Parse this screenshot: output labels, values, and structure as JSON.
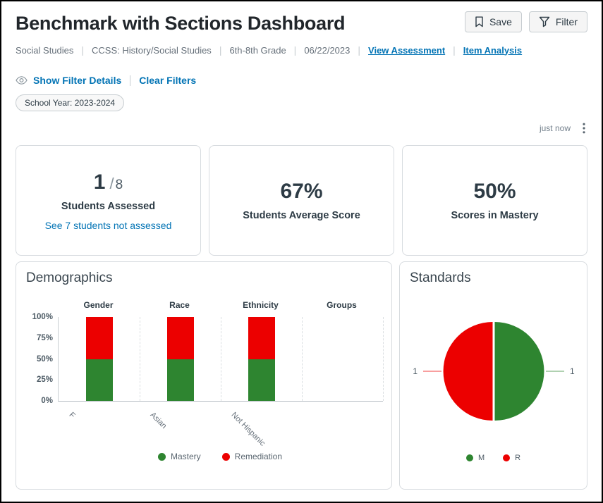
{
  "page": {
    "title": "Benchmark with Sections Dashboard",
    "toolbar": {
      "save_label": "Save",
      "filter_label": "Filter"
    },
    "breadcrumb": {
      "items": [
        "Social Studies",
        "CCSS: History/Social Studies",
        "6th-8th Grade",
        "06/22/2023"
      ],
      "links": [
        "View Assessment",
        "Item Analysis"
      ]
    },
    "filter_bar": {
      "show_filter_details": "Show Filter Details",
      "clear_filters": "Clear Filters"
    },
    "chips": [
      {
        "label": "School Year: 2023-2024"
      }
    ],
    "meta": {
      "updated": "just now"
    }
  },
  "stats": [
    {
      "value": "1",
      "separator": "/",
      "total": "8",
      "label": "Students Assessed",
      "link": "See 7 students not assessed"
    },
    {
      "value": "67%",
      "label": "Students Average Score"
    },
    {
      "value": "50%",
      "label": "Scores in Mastery"
    }
  ],
  "colors": {
    "mastery_green": "#2E8530",
    "remediation_red": "#EC0000",
    "link_blue": "#0374B5",
    "ink": "#2D3B45"
  },
  "chart_data": [
    {
      "id": "demographics",
      "type": "bar",
      "stacked": true,
      "title": "Demographics",
      "group_headers": [
        "Gender",
        "Race",
        "Ethnicity",
        "Groups"
      ],
      "categories": [
        "F",
        "Asian",
        "Not Hispanic",
        null
      ],
      "yticks": [
        "100%",
        "75%",
        "50%",
        "25%",
        "0%"
      ],
      "ylim": [
        0,
        100
      ],
      "grid": "dashed-vertical-group-separators",
      "legend_position": "bottom",
      "series": [
        {
          "name": "Mastery",
          "color": "#2E8530",
          "values": [
            50,
            50,
            50,
            null
          ]
        },
        {
          "name": "Remediation",
          "color": "#EC0000",
          "values": [
            50,
            50,
            50,
            null
          ]
        }
      ]
    },
    {
      "id": "standards",
      "type": "pie",
      "title": "Standards",
      "legend_position": "bottom",
      "slices": [
        {
          "label": "M",
          "value": 1,
          "color": "#2E8530"
        },
        {
          "label": "R",
          "value": 1,
          "color": "#EC0000"
        }
      ],
      "data_labels": [
        "1",
        "1"
      ]
    }
  ]
}
